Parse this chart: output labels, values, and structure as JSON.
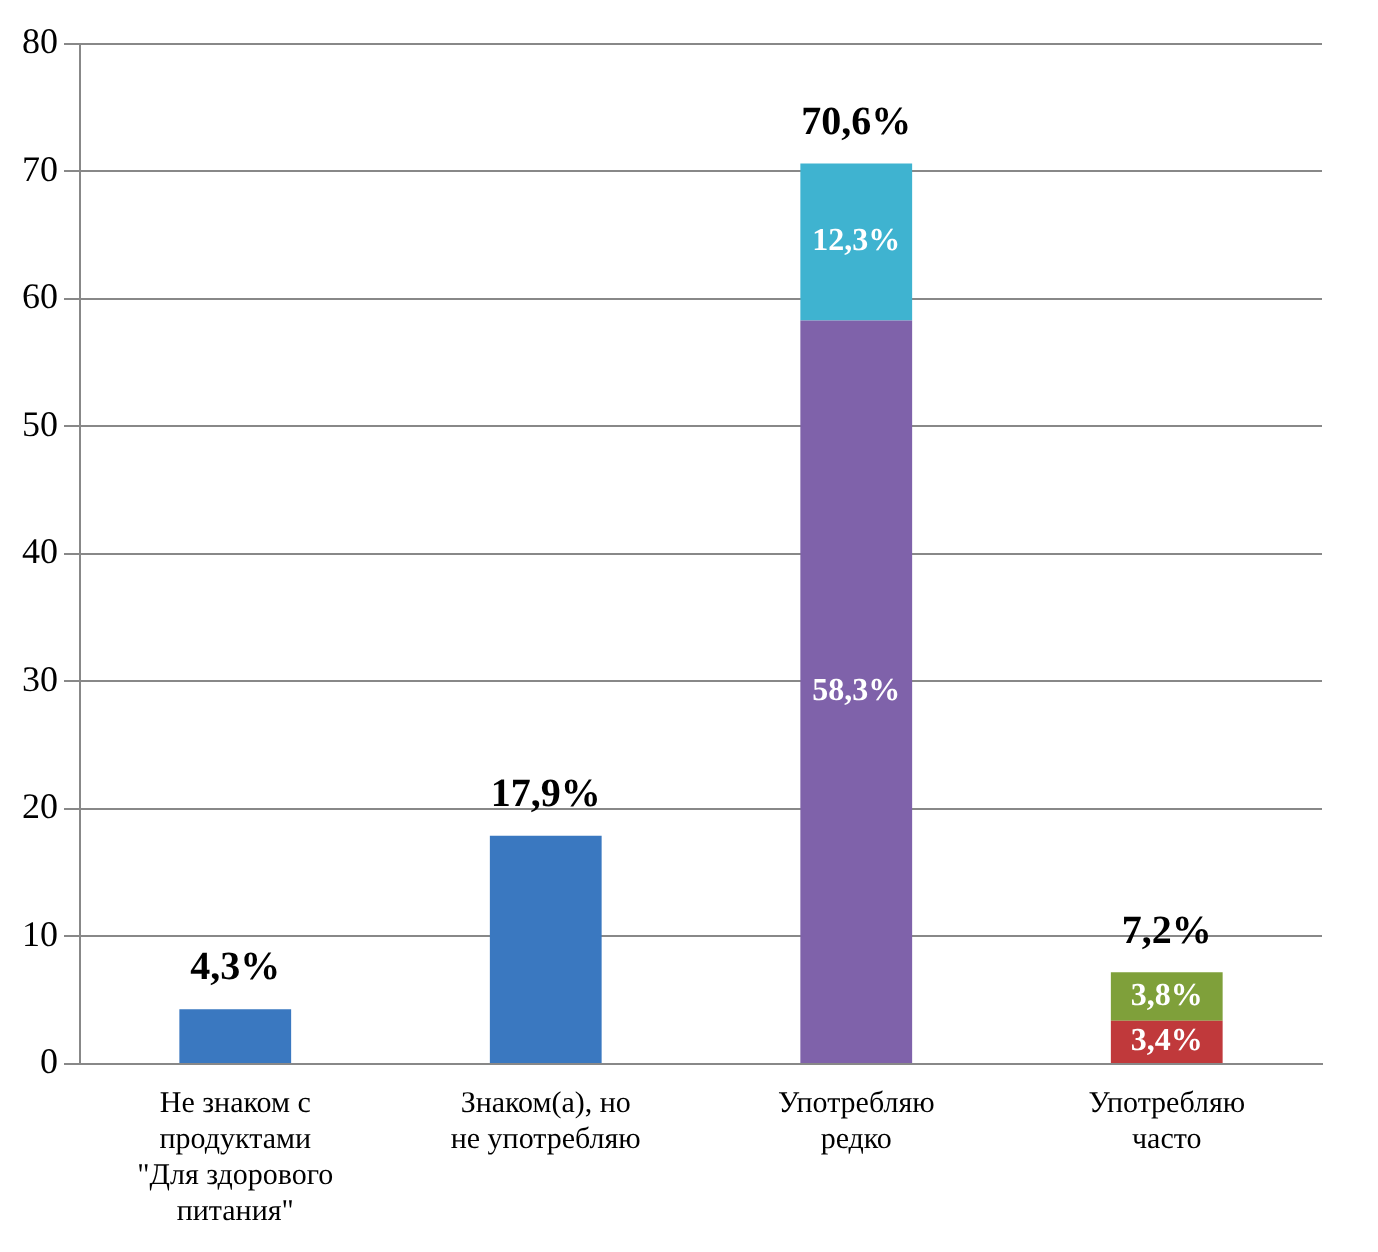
{
  "chart_data": {
    "type": "bar",
    "stacked": true,
    "categories": [
      "Не знаком с продуктами \"Для здорового питания\"",
      "Знаком(а), но не употребляю",
      "Употребляю редко",
      "Употребляю часто"
    ],
    "series": [
      {
        "color": "#3a78c0",
        "values": [
          4.3,
          17.9,
          null,
          null
        ]
      },
      {
        "color": "#7f62aa",
        "values": [
          null,
          null,
          58.3,
          null
        ],
        "value_labels": [
          null,
          null,
          "58,3%",
          null
        ]
      },
      {
        "color": "#3fb3d0",
        "values": [
          null,
          null,
          12.3,
          null
        ],
        "value_labels": [
          null,
          null,
          "12,3%",
          null
        ]
      },
      {
        "color": "#c0393b",
        "values": [
          null,
          null,
          null,
          3.4
        ],
        "value_labels": [
          null,
          null,
          null,
          "3,4%"
        ]
      },
      {
        "color": "#7fa03a",
        "values": [
          null,
          null,
          null,
          3.8
        ],
        "value_labels": [
          null,
          null,
          null,
          "3,8%"
        ]
      }
    ],
    "totals": [
      "4,3%",
      "17,9%",
      "70,6%",
      "7,2%"
    ],
    "ylim": [
      0,
      80
    ],
    "yticks": [
      0,
      10,
      20,
      30,
      40,
      50,
      60,
      70,
      80
    ],
    "grid": "y",
    "legend": false
  }
}
